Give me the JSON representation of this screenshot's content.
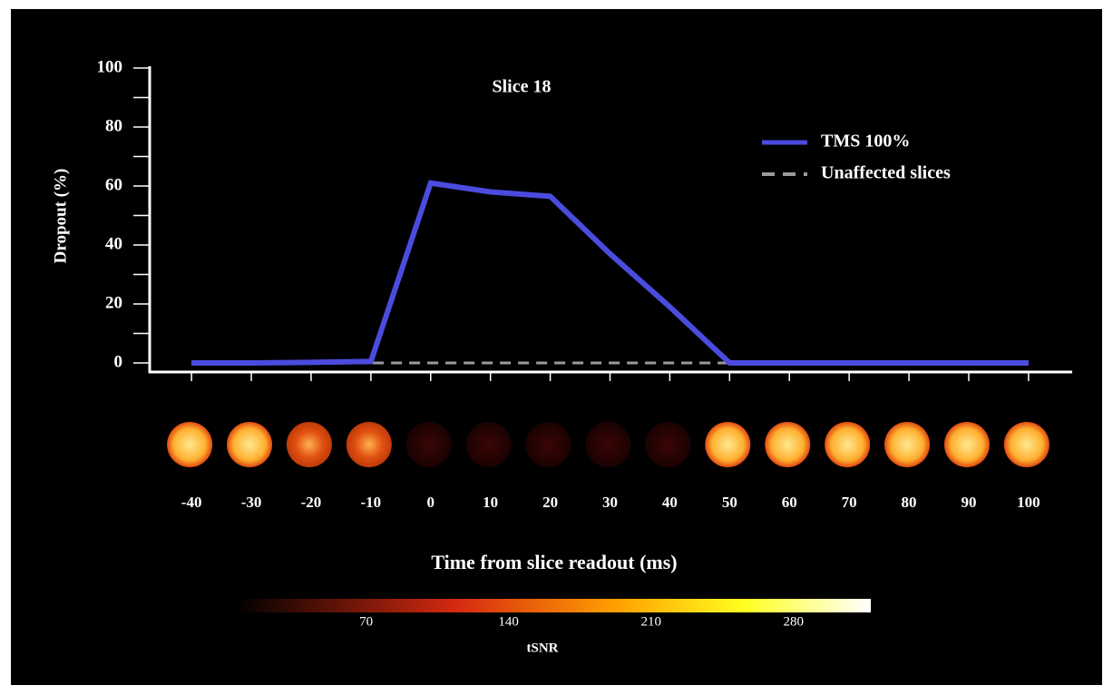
{
  "chart_data": {
    "type": "line",
    "title": "Slice 18",
    "x": [
      -40,
      -30,
      -20,
      -10,
      0,
      10,
      20,
      30,
      40,
      50,
      60,
      70,
      80,
      90,
      100
    ],
    "series": [
      {
        "name": "TMS 100%",
        "color": "#4b4bde",
        "dashed": false,
        "values": [
          0,
          0,
          0.2,
          0.5,
          61,
          58,
          56.5,
          37,
          19,
          0,
          0,
          0,
          0,
          0,
          0
        ]
      },
      {
        "name": "Unaffected slices",
        "color": "#9a9a9a",
        "dashed": true,
        "values": [
          0,
          0,
          0,
          0,
          0,
          0,
          0,
          0,
          0,
          0,
          0,
          0,
          0,
          0.5,
          0
        ]
      }
    ],
    "xlim": [
      -47,
      107
    ],
    "xticks": [
      -40,
      -30,
      -20,
      -10,
      0,
      10,
      20,
      30,
      40,
      50,
      60,
      70,
      80,
      90,
      100
    ],
    "ylim": [
      0,
      100
    ],
    "yticks": [
      0,
      20,
      40,
      60,
      80,
      100
    ],
    "yminorticks": [
      10,
      30,
      50,
      70,
      90
    ],
    "xlabel": "Time from slice readout (ms)",
    "ylabel": "Dropout (%)",
    "legend": "upper right",
    "colorbar": {
      "label": "tSNR",
      "lim": [
        6,
        318
      ],
      "ticks": [
        70,
        140,
        210,
        280
      ]
    }
  }
}
